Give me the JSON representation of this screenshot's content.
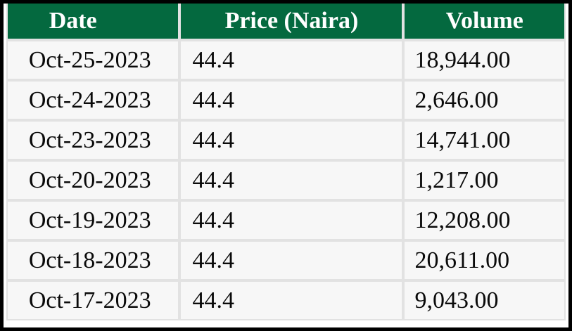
{
  "chart_data": {
    "type": "table",
    "columns": [
      "Date",
      "Price (Naira)",
      "Volume"
    ],
    "rows": [
      [
        "Oct-25-2023",
        "44.4",
        "18,944.00"
      ],
      [
        "Oct-24-2023",
        "44.4",
        "2,646.00"
      ],
      [
        "Oct-23-2023",
        "44.4",
        "14,741.00"
      ],
      [
        "Oct-20-2023",
        "44.4",
        "1,217.00"
      ],
      [
        "Oct-19-2023",
        "44.4",
        "12,208.00"
      ],
      [
        "Oct-18-2023",
        "44.4",
        "20,611.00"
      ],
      [
        "Oct-17-2023",
        "44.4",
        "9,043.00"
      ]
    ]
  },
  "table": {
    "headers": [
      {
        "label": "Date"
      },
      {
        "label": "Price (Naira)"
      },
      {
        "label": "Volume"
      }
    ],
    "rows": [
      {
        "date": "Oct-25-2023",
        "price": "44.4",
        "volume": "18,944.00"
      },
      {
        "date": "Oct-24-2023",
        "price": "44.4",
        "volume": "2,646.00"
      },
      {
        "date": "Oct-23-2023",
        "price": "44.4",
        "volume": "14,741.00"
      },
      {
        "date": "Oct-20-2023",
        "price": "44.4",
        "volume": "1,217.00"
      },
      {
        "date": "Oct-19-2023",
        "price": "44.4",
        "volume": "12,208.00"
      },
      {
        "date": "Oct-18-2023",
        "price": "44.4",
        "volume": "20,611.00"
      },
      {
        "date": "Oct-17-2023",
        "price": "44.4",
        "volume": "9,043.00"
      }
    ]
  },
  "colors": {
    "header_bg": "#04693F",
    "header_text": "#FFFFFF",
    "cell_bg": "#F7F7F7",
    "gridline": "#E2E2E2",
    "frame": "#000000",
    "body_text": "#0A0A0A"
  }
}
